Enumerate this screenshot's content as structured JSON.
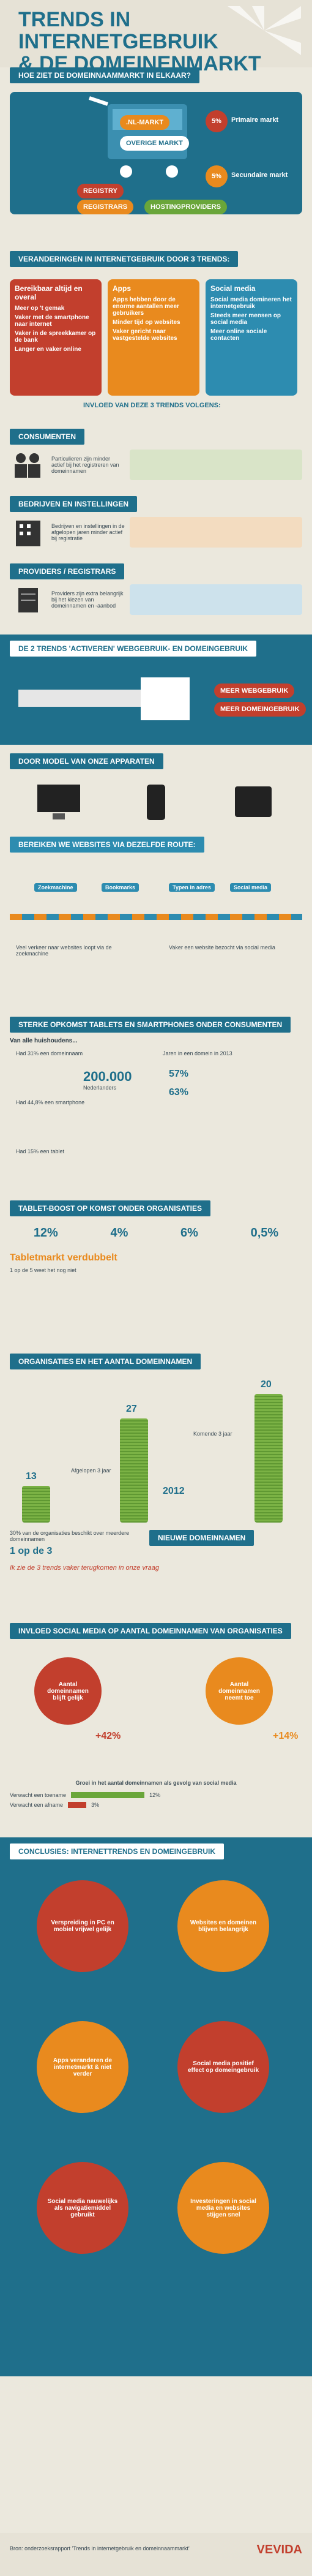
{
  "header": {
    "title_line1": "Trends in internetgebruik",
    "title_line2": "& de domeinenmarkt"
  },
  "sec1": {
    "heading": "Hoe ziet de domeinnaammarkt in elkaar?",
    "cart": {
      "nl": ".NL-markt",
      "overig": "Overige markt",
      "pct": "5%"
    },
    "primary": "Primaire markt",
    "secondary": "Secundaire markt",
    "registry": "Registry",
    "regs": "Registrars",
    "hosting": "Hostingproviders"
  },
  "sec2": {
    "heading": "Veranderingen in internetgebruik door 3 trends:",
    "cols": [
      {
        "title": "Bereikbaar altijd en overal",
        "items": [
          "Meer op 't gemak",
          "Vaker met de smartphone naar internet",
          "Vaker in de spreekkamer op de bank",
          "Langer en vaker online"
        ]
      },
      {
        "title": "Apps",
        "items": [
          "Apps hebben door de enorme aantallen meer gebruikers",
          "Minder tijd op websites",
          "Vaker gericht naar vastgestelde websites"
        ]
      },
      {
        "title": "Social media",
        "items": [
          "Social media domineren het internetgebruik",
          "Steeds meer mensen op social media",
          "Meer online sociale contacten"
        ]
      }
    ],
    "caption": "Invloed van deze 3 trends volgens:"
  },
  "sec3": {
    "heading": "Consumenten",
    "col1": "Particulieren zijn minder actief bij het registreren van domeinnamen"
  },
  "sec4": {
    "heading": "Bedrijven en instellingen",
    "col1": "Bedrijven en instellingen in de afgelopen jaren minder actief bij registratie"
  },
  "sec5": {
    "heading": "Providers / Registrars",
    "col1": "Providers zijn extra belangrijk bij het kiezen van domeinnamen en -aanbod"
  },
  "sec6": {
    "heading": "De 2 trends 'activeren' webgebruik- en domeingebruik",
    "label1": "Meer webgebruik",
    "label2": "Meer domeingebruik"
  },
  "sec7": {
    "heading": "Door model van onze apparaten",
    "reach": "Bereiken we websites via dezelfde route:",
    "steps": [
      "Zoekmachine",
      "Bookmarks",
      "Typen in adres",
      "Social media"
    ],
    "note1": "Veel verkeer naar websites loopt via de zoekmachine",
    "note2": "Vaker een website bezocht via social media"
  },
  "sec8": {
    "heading": "Sterke opkomst tablets en smartphones onder consumenten",
    "sub": "Van alle huishoudens...",
    "h1": "Had 31% een domeinnaam",
    "h2": "Had 44,8% een smartphone",
    "h3": "Had 15% een tablet",
    "big": "200.000",
    "big_label": "Nederlanders",
    "mobile": "Jaren in een domein in 2013",
    "pct1": "57%",
    "pct2": "63%"
  },
  "sec9": {
    "heading": "Tablet-boost op komst onder organisaties",
    "nums": [
      "12%",
      "4%",
      "6%",
      "0,5%"
    ],
    "note": "Tabletmarkt verdubbelt",
    "q": "1 op de 5 weet het nog niet"
  },
  "sec10": {
    "heading": "Organisaties en het aantal domeinnamen",
    "vals": [
      "13",
      "27",
      "20"
    ],
    "years": "3 jaar",
    "komende": "Komende 3 jaar",
    "afgelopen": "Afgelopen 3 jaar",
    "n2012": "2012",
    "note1": "30% van de organisaties beschikt over meerdere domeinnamen",
    "note2": "1 op de 3",
    "nieuw": "Nieuwe domeinnamen",
    "quote": "Ik zie de 3 trends vaker terugkomen in onze vraag"
  },
  "sec11": {
    "heading": "Invloed social media op aantal domeinnamen van organisaties",
    "left": "Aantal domeinnamen blijft gelijk",
    "right": "Aantal domeinnamen neemt toe",
    "p1": "+42%",
    "p2": "+14%",
    "sub1": "Groei in het aantal domeinnamen als gevolg van social media",
    "bar1": "Verwacht een toename",
    "bar2": "Verwacht een afname",
    "v1": "12%",
    "v2": "3%"
  },
  "sec12": {
    "heading": "Conclusies: Internettrends en domeingebruik",
    "c": [
      "Verspreiding in PC en mobiel vrijwel gelijk",
      "Websites en domeinen blijven belangrijk",
      "Apps veranderen de internetmarkt & niet verder",
      "Social media positief effect op domeingebruik",
      "Social media nauwelijks als navigatiemiddel gebruikt",
      "Investeringen in social media en websites stijgen snel"
    ]
  },
  "footer": {
    "text": "Bron: onderzoeksrapport 'Trends in internetgebruik en domeinnaammarkt'",
    "brand": "VEVIDA"
  },
  "colors": {
    "blue": "#1f6f8b",
    "orange": "#e98a1e",
    "red": "#c23f2d",
    "green": "#6aa63a",
    "sky": "#2d8cb0"
  }
}
